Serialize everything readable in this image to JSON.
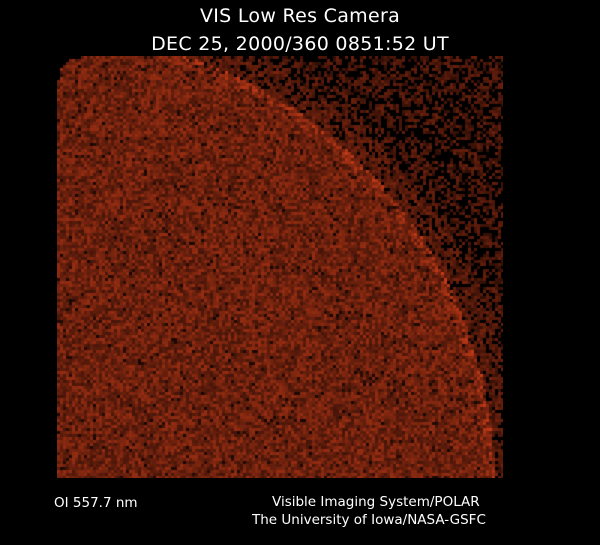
{
  "header": {
    "title": "VIS Low Res Camera",
    "timestamp": "DEC 25, 2000/360 0851:52 UT"
  },
  "footer": {
    "filter": "OI  557.7 nm",
    "instrument": "Visible Imaging System/POLAR",
    "institution": "The University of Iowa/NASA-GSFC"
  },
  "colors": {
    "earth": "#7a2a12",
    "limb": "#a04020",
    "background": "#000000"
  }
}
